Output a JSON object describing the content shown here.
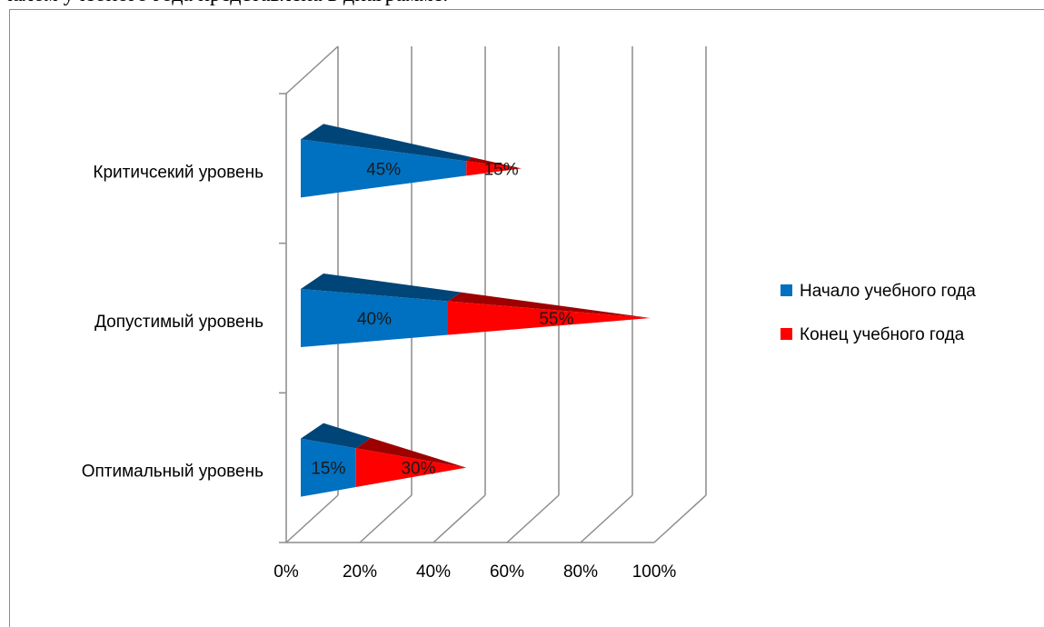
{
  "document": {
    "text_above": "чалом учебного года представлена в диаграмме."
  },
  "chart_data": {
    "type": "bar",
    "orientation": "horizontal",
    "shape": "3d-cone",
    "stacked": true,
    "categories": [
      "Оптимальный уровень",
      "Допустимый уровень",
      "Критичсекий уровень"
    ],
    "series": [
      {
        "name": "Начало учебного года",
        "values": [
          15,
          40,
          45
        ],
        "labels": [
          "15%",
          "40%",
          "45%"
        ],
        "color": "#0070c0"
      },
      {
        "name": "Конец учебного года",
        "values": [
          30,
          55,
          15
        ],
        "labels": [
          "30%",
          "55%",
          "15%"
        ],
        "color": "#ff0000"
      }
    ],
    "x_ticks": [
      "0%",
      "20%",
      "40%",
      "60%",
      "80%",
      "100%"
    ],
    "xlim": [
      0,
      100
    ],
    "grid": true,
    "legend": "right",
    "title": "",
    "xlabel": "",
    "ylabel": ""
  }
}
